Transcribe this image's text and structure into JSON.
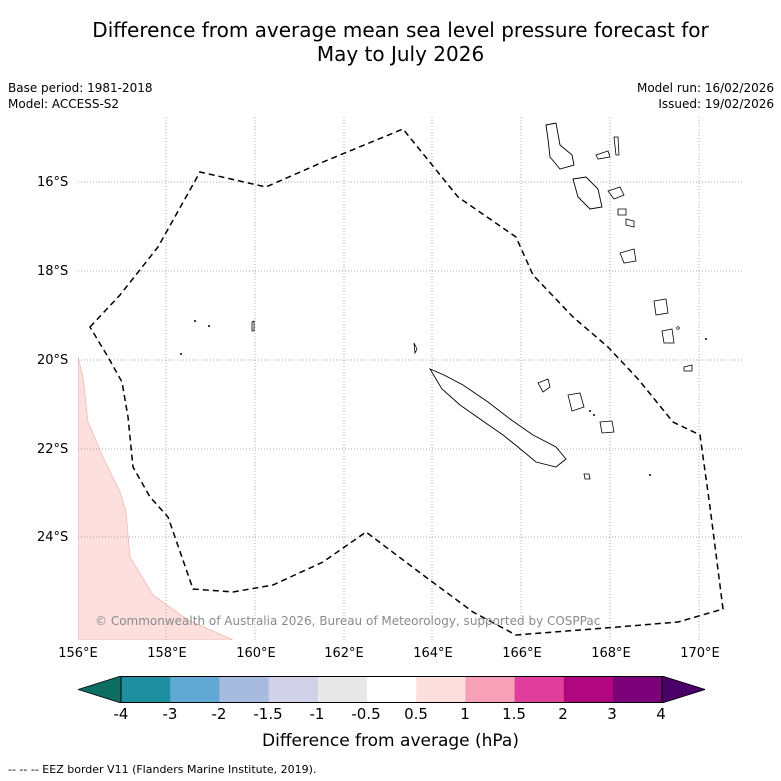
{
  "title_line1": "Difference from average mean sea level pressure forecast for",
  "title_line2": "May to July 2026",
  "base_period": "Base period: 1981-2018",
  "model": "Model: ACCESS-S2",
  "model_run": "Model run: 16/02/2026",
  "issued": "Issued: 19/02/2026",
  "copyright": "© Commonwealth of Australia 2026, Bureau of Meteorology, supported by COSPPac",
  "lat_labels": [
    "16°S",
    "18°S",
    "20°S",
    "22°S",
    "24°S"
  ],
  "lon_labels": [
    "156°E",
    "158°E",
    "160°E",
    "162°E",
    "164°E",
    "166°E",
    "168°E",
    "170°E"
  ],
  "colorbar": {
    "label": "Difference from average (hPa)",
    "ticks": [
      "-4",
      "-3",
      "-2",
      "-1.5",
      "-1",
      "-0.5",
      "0.5",
      "1",
      "1.5",
      "2",
      "3",
      "4"
    ],
    "colors": [
      "#0b6e60",
      "#1e8fa0",
      "#62a8d4",
      "#a6bbdd",
      "#d1d1e8",
      "#e8e8e8",
      "#ffffff",
      "#fde0de",
      "#f8a0b8",
      "#df3e9c",
      "#b1077e",
      "#7b0278",
      "#4a0068"
    ]
  },
  "footnote": "--  --  -- EEZ border V11 (Flanders Marine Institute, 2019).",
  "chart_data": {
    "type": "map",
    "variable": "Difference from average mean sea level pressure (hPa)",
    "lon_range": [
      156,
      171
    ],
    "lat_range": [
      -26.2,
      -14.6
    ],
    "gridlines": true,
    "features": [
      "New Caledonia EEZ border (dashed)",
      "coastlines",
      "slight positive anomaly (0.5 to 1 hPa) near south-west corner"
    ]
  }
}
